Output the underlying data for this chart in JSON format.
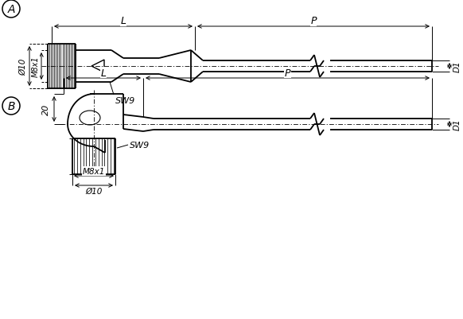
{
  "bg_color": "#ffffff",
  "lc": "#000000",
  "label_A": "A",
  "label_B": "B",
  "label_L": "L",
  "label_P": "P",
  "label_D1": "D1",
  "label_SW9": "SW9",
  "label_M8x1": "M8x1",
  "label_D10": "Ø10",
  "label_20": "20",
  "figw": 5.82,
  "figh": 4.02,
  "dpi": 100
}
